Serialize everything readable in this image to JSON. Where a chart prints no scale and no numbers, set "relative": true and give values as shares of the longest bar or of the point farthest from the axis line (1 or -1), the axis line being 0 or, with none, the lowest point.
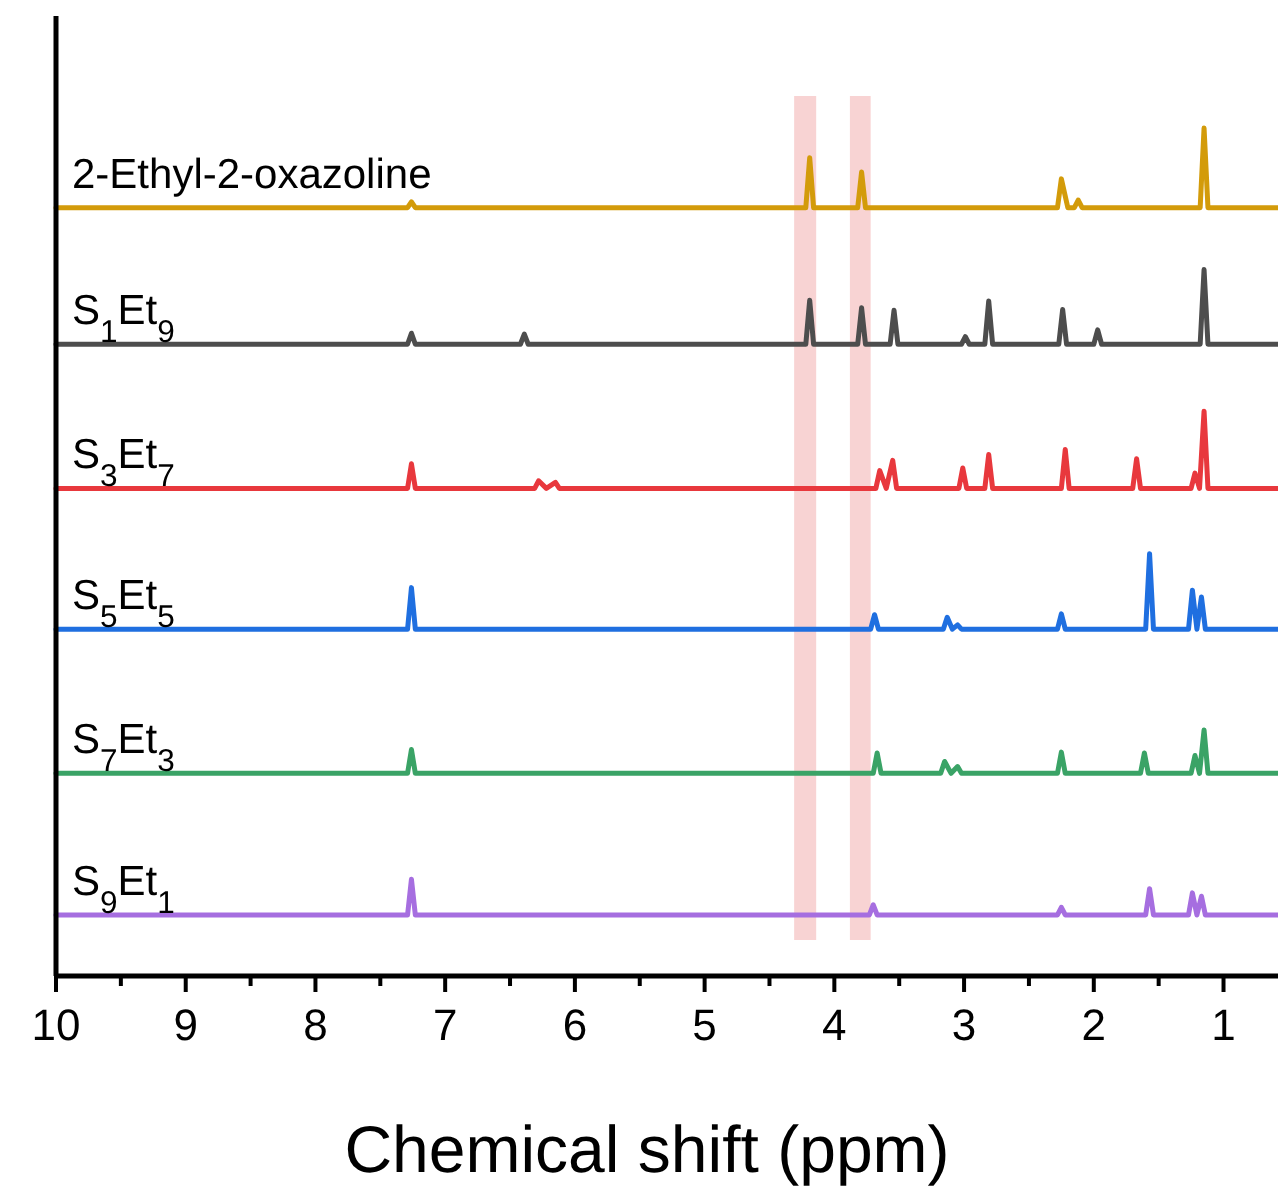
{
  "chart_data": {
    "type": "line",
    "relative": true,
    "xlabel": "Chemical shift (ppm)",
    "xlim": [
      10,
      0.58
    ],
    "xticks": [
      10,
      {
        "value": 9.5,
        "label": null
      },
      9,
      {
        "value": 8.5,
        "label": null
      },
      8,
      {
        "value": 7.5,
        "label": null
      },
      7,
      {
        "value": 6.5,
        "label": null
      },
      6,
      {
        "value": 5.5,
        "label": null
      },
      5,
      {
        "value": 4.5,
        "label": null
      },
      4,
      {
        "value": 3.5,
        "label": null
      },
      3,
      {
        "value": 2.5,
        "label": null
      },
      2,
      {
        "value": 1.5,
        "label": null
      },
      1
    ],
    "line_style": "solid",
    "marker": "none",
    "bands": [
      {
        "axis": "x",
        "from": 4.31,
        "to": 4.14,
        "color": "#f4b6b6"
      },
      {
        "axis": "x",
        "from": 3.88,
        "to": 3.72,
        "color": "#f4b6b6"
      }
    ],
    "series": [
      {
        "name": "2-Ethyl-2-oxazoline",
        "color": "#d39b0a",
        "x": [
          10,
          7.29,
          7.26,
          7.23,
          4.22,
          4.19,
          4.16,
          3.82,
          3.79,
          3.76,
          2.28,
          2.25,
          2.2,
          2.15,
          2.12,
          2.09,
          1.18,
          1.15,
          1.12,
          0.58
        ],
        "values": [
          0.906,
          0.906,
          0.913,
          0.906,
          0.906,
          0.965,
          0.906,
          0.906,
          0.948,
          0.906,
          0.906,
          0.94,
          0.906,
          0.906,
          0.915,
          0.906,
          0.906,
          1.0,
          0.906,
          0.906
        ]
      },
      {
        "name": "S$_{1}$Et$_{9}$",
        "color": "#4d4d4d",
        "x": [
          10,
          7.29,
          7.26,
          7.23,
          6.42,
          6.39,
          6.36,
          4.22,
          4.19,
          4.16,
          3.82,
          3.79,
          3.76,
          3.57,
          3.54,
          3.51,
          3.02,
          2.99,
          2.96,
          2.84,
          2.81,
          2.78,
          2.27,
          2.24,
          2.21,
          2.0,
          1.97,
          1.94,
          1.18,
          1.15,
          1.12,
          0.58
        ],
        "values": [
          0.745,
          0.745,
          0.758,
          0.745,
          0.745,
          0.757,
          0.745,
          0.745,
          0.797,
          0.745,
          0.745,
          0.788,
          0.745,
          0.745,
          0.785,
          0.745,
          0.745,
          0.754,
          0.745,
          0.745,
          0.796,
          0.745,
          0.745,
          0.786,
          0.745,
          0.745,
          0.762,
          0.745,
          0.745,
          0.833,
          0.745,
          0.745
        ]
      },
      {
        "name": "S$_{3}$Et$_{7}$",
        "color": "#e8383d",
        "x": [
          10,
          7.29,
          7.26,
          7.23,
          6.31,
          6.28,
          6.22,
          6.15,
          6.12,
          3.68,
          3.65,
          3.6,
          3.55,
          3.52,
          3.04,
          3.01,
          2.98,
          2.84,
          2.81,
          2.78,
          2.25,
          2.22,
          2.19,
          1.7,
          1.67,
          1.64,
          1.25,
          1.22,
          1.185,
          1.15,
          1.12,
          0.58
        ],
        "values": [
          0.575,
          0.575,
          0.604,
          0.575,
          0.575,
          0.584,
          0.575,
          0.582,
          0.575,
          0.575,
          0.596,
          0.575,
          0.608,
          0.575,
          0.575,
          0.599,
          0.575,
          0.575,
          0.615,
          0.575,
          0.575,
          0.621,
          0.575,
          0.575,
          0.61,
          0.575,
          0.575,
          0.593,
          0.575,
          0.666,
          0.575,
          0.575
        ]
      },
      {
        "name": "S$_{5}$Et$_{5}$",
        "color": "#1f6fe0",
        "x": [
          10,
          7.29,
          7.26,
          7.23,
          3.72,
          3.69,
          3.66,
          3.16,
          3.13,
          3.09,
          3.05,
          3.02,
          2.28,
          2.25,
          2.22,
          1.6,
          1.57,
          1.54,
          1.27,
          1.24,
          1.205,
          1.17,
          1.14,
          0.58
        ],
        "values": [
          0.409,
          0.409,
          0.458,
          0.409,
          0.409,
          0.426,
          0.409,
          0.409,
          0.423,
          0.409,
          0.414,
          0.409,
          0.409,
          0.427,
          0.409,
          0.409,
          0.498,
          0.409,
          0.409,
          0.455,
          0.409,
          0.447,
          0.409,
          0.409
        ]
      },
      {
        "name": "S$_{7}$Et$_{3}$",
        "color": "#3aa366",
        "x": [
          10,
          7.29,
          7.26,
          7.23,
          3.7,
          3.67,
          3.64,
          3.18,
          3.15,
          3.1,
          3.05,
          3.02,
          2.28,
          2.25,
          2.22,
          1.64,
          1.61,
          1.58,
          1.25,
          1.22,
          1.185,
          1.15,
          1.12,
          0.58
        ],
        "values": [
          0.239,
          0.239,
          0.267,
          0.239,
          0.239,
          0.263,
          0.239,
          0.239,
          0.253,
          0.239,
          0.247,
          0.239,
          0.239,
          0.264,
          0.239,
          0.239,
          0.263,
          0.239,
          0.239,
          0.26,
          0.239,
          0.29,
          0.239,
          0.239
        ]
      },
      {
        "name": "S$_{9}$Et$_{1}$",
        "color": "#a66ee0",
        "x": [
          10,
          7.29,
          7.26,
          7.23,
          3.73,
          3.7,
          3.67,
          2.28,
          2.25,
          2.22,
          1.6,
          1.57,
          1.54,
          1.27,
          1.24,
          1.205,
          1.17,
          1.14,
          0.58
        ],
        "values": [
          0.072,
          0.072,
          0.114,
          0.072,
          0.072,
          0.084,
          0.072,
          0.072,
          0.081,
          0.072,
          0.072,
          0.103,
          0.072,
          0.072,
          0.098,
          0.072,
          0.094,
          0.072,
          0.072
        ]
      }
    ]
  }
}
